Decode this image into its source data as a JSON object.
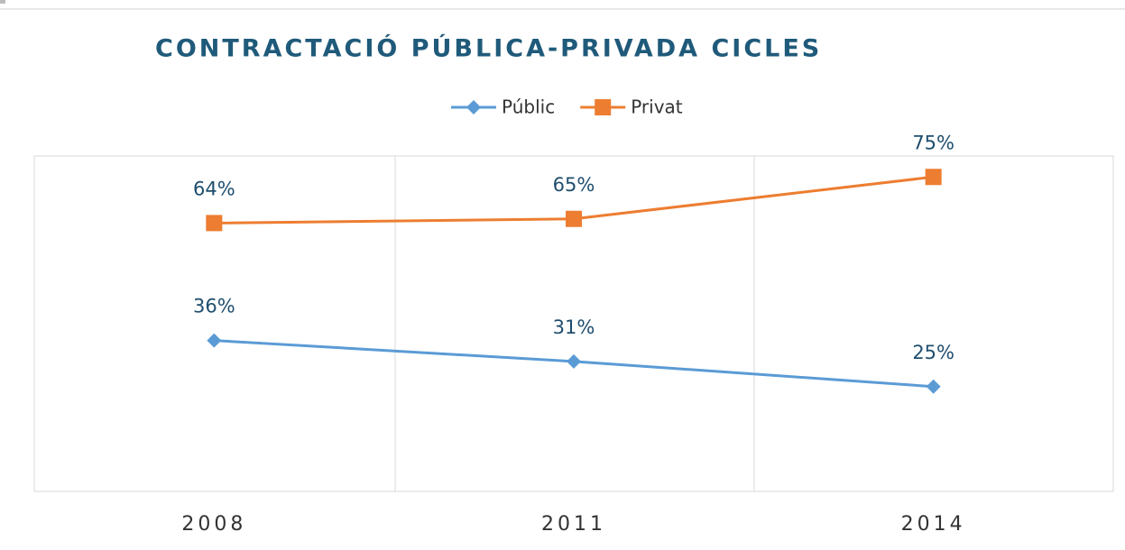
{
  "chart_data": {
    "type": "line",
    "title": "CONTRACTACIÓ PÚBLICA-PRIVADA CICLES",
    "categories": [
      "2008",
      "2011",
      "2014"
    ],
    "series": [
      {
        "name": "Públic",
        "color": "#5b9bd5",
        "marker": "diamond",
        "values": [
          36,
          31,
          25
        ],
        "value_labels": [
          "36%",
          "31%",
          "25%"
        ]
      },
      {
        "name": "Privat",
        "color": "#ed7d31",
        "marker": "square",
        "values": [
          64,
          65,
          75
        ],
        "value_labels": [
          "64%",
          "65%",
          "75%"
        ]
      }
    ],
    "ylim": [
      0,
      80
    ],
    "legend": "top"
  }
}
